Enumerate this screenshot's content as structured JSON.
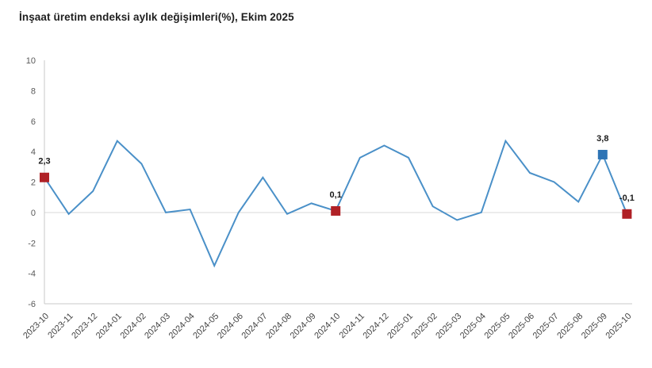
{
  "title": "İnşaat üretim endeksi aylık değişimleri(%), Ekim 2025",
  "colors": {
    "line": "#4a90c8",
    "marker_red": "#b02126",
    "marker_blue": "#2e74b5",
    "zero_line": "#d9d9d9",
    "axis_line": "#c9c9c9",
    "y_tick_text": "#595959",
    "x_tick_text": "#444444",
    "data_label_text": "#1a1a1a"
  },
  "chart_data": {
    "type": "line",
    "title": "İnşaat üretim endeksi aylık değişimleri(%), Ekim 2025",
    "x": [
      "2023-10",
      "2023-11",
      "2023-12",
      "2024-01",
      "2024-02",
      "2024-03",
      "2024-04",
      "2024-05",
      "2024-06",
      "2024-07",
      "2024-08",
      "2024-09",
      "2024-10",
      "2024-11",
      "2024-12",
      "2025-01",
      "2025-02",
      "2025-03",
      "2025-04",
      "2025-05",
      "2025-06",
      "2025-07",
      "2025-08",
      "2025-09",
      "2025-10"
    ],
    "values": [
      2.3,
      -0.1,
      1.4,
      4.7,
      3.2,
      0.0,
      0.2,
      -3.5,
      0.0,
      2.3,
      -0.1,
      0.6,
      0.1,
      3.6,
      4.4,
      3.6,
      0.4,
      -0.5,
      0.0,
      4.7,
      2.6,
      2.0,
      0.7,
      3.8,
      -0.1
    ],
    "ylim": [
      -6,
      10
    ],
    "yticks": [
      10,
      8,
      6,
      4,
      2,
      0,
      -2,
      -4,
      -6
    ],
    "xlabel": "",
    "ylabel": "",
    "grid": "zero-line-only",
    "legend": "none",
    "highlighted_points": [
      {
        "x": "2023-10",
        "index": 0,
        "label": "2,3",
        "marker": "red"
      },
      {
        "x": "2024-10",
        "index": 12,
        "label": "0,1",
        "marker": "red"
      },
      {
        "x": "2025-09",
        "index": 23,
        "label": "3,8",
        "marker": "blue"
      },
      {
        "x": "2025-10",
        "index": 24,
        "label": "-0,1",
        "marker": "red"
      }
    ]
  }
}
